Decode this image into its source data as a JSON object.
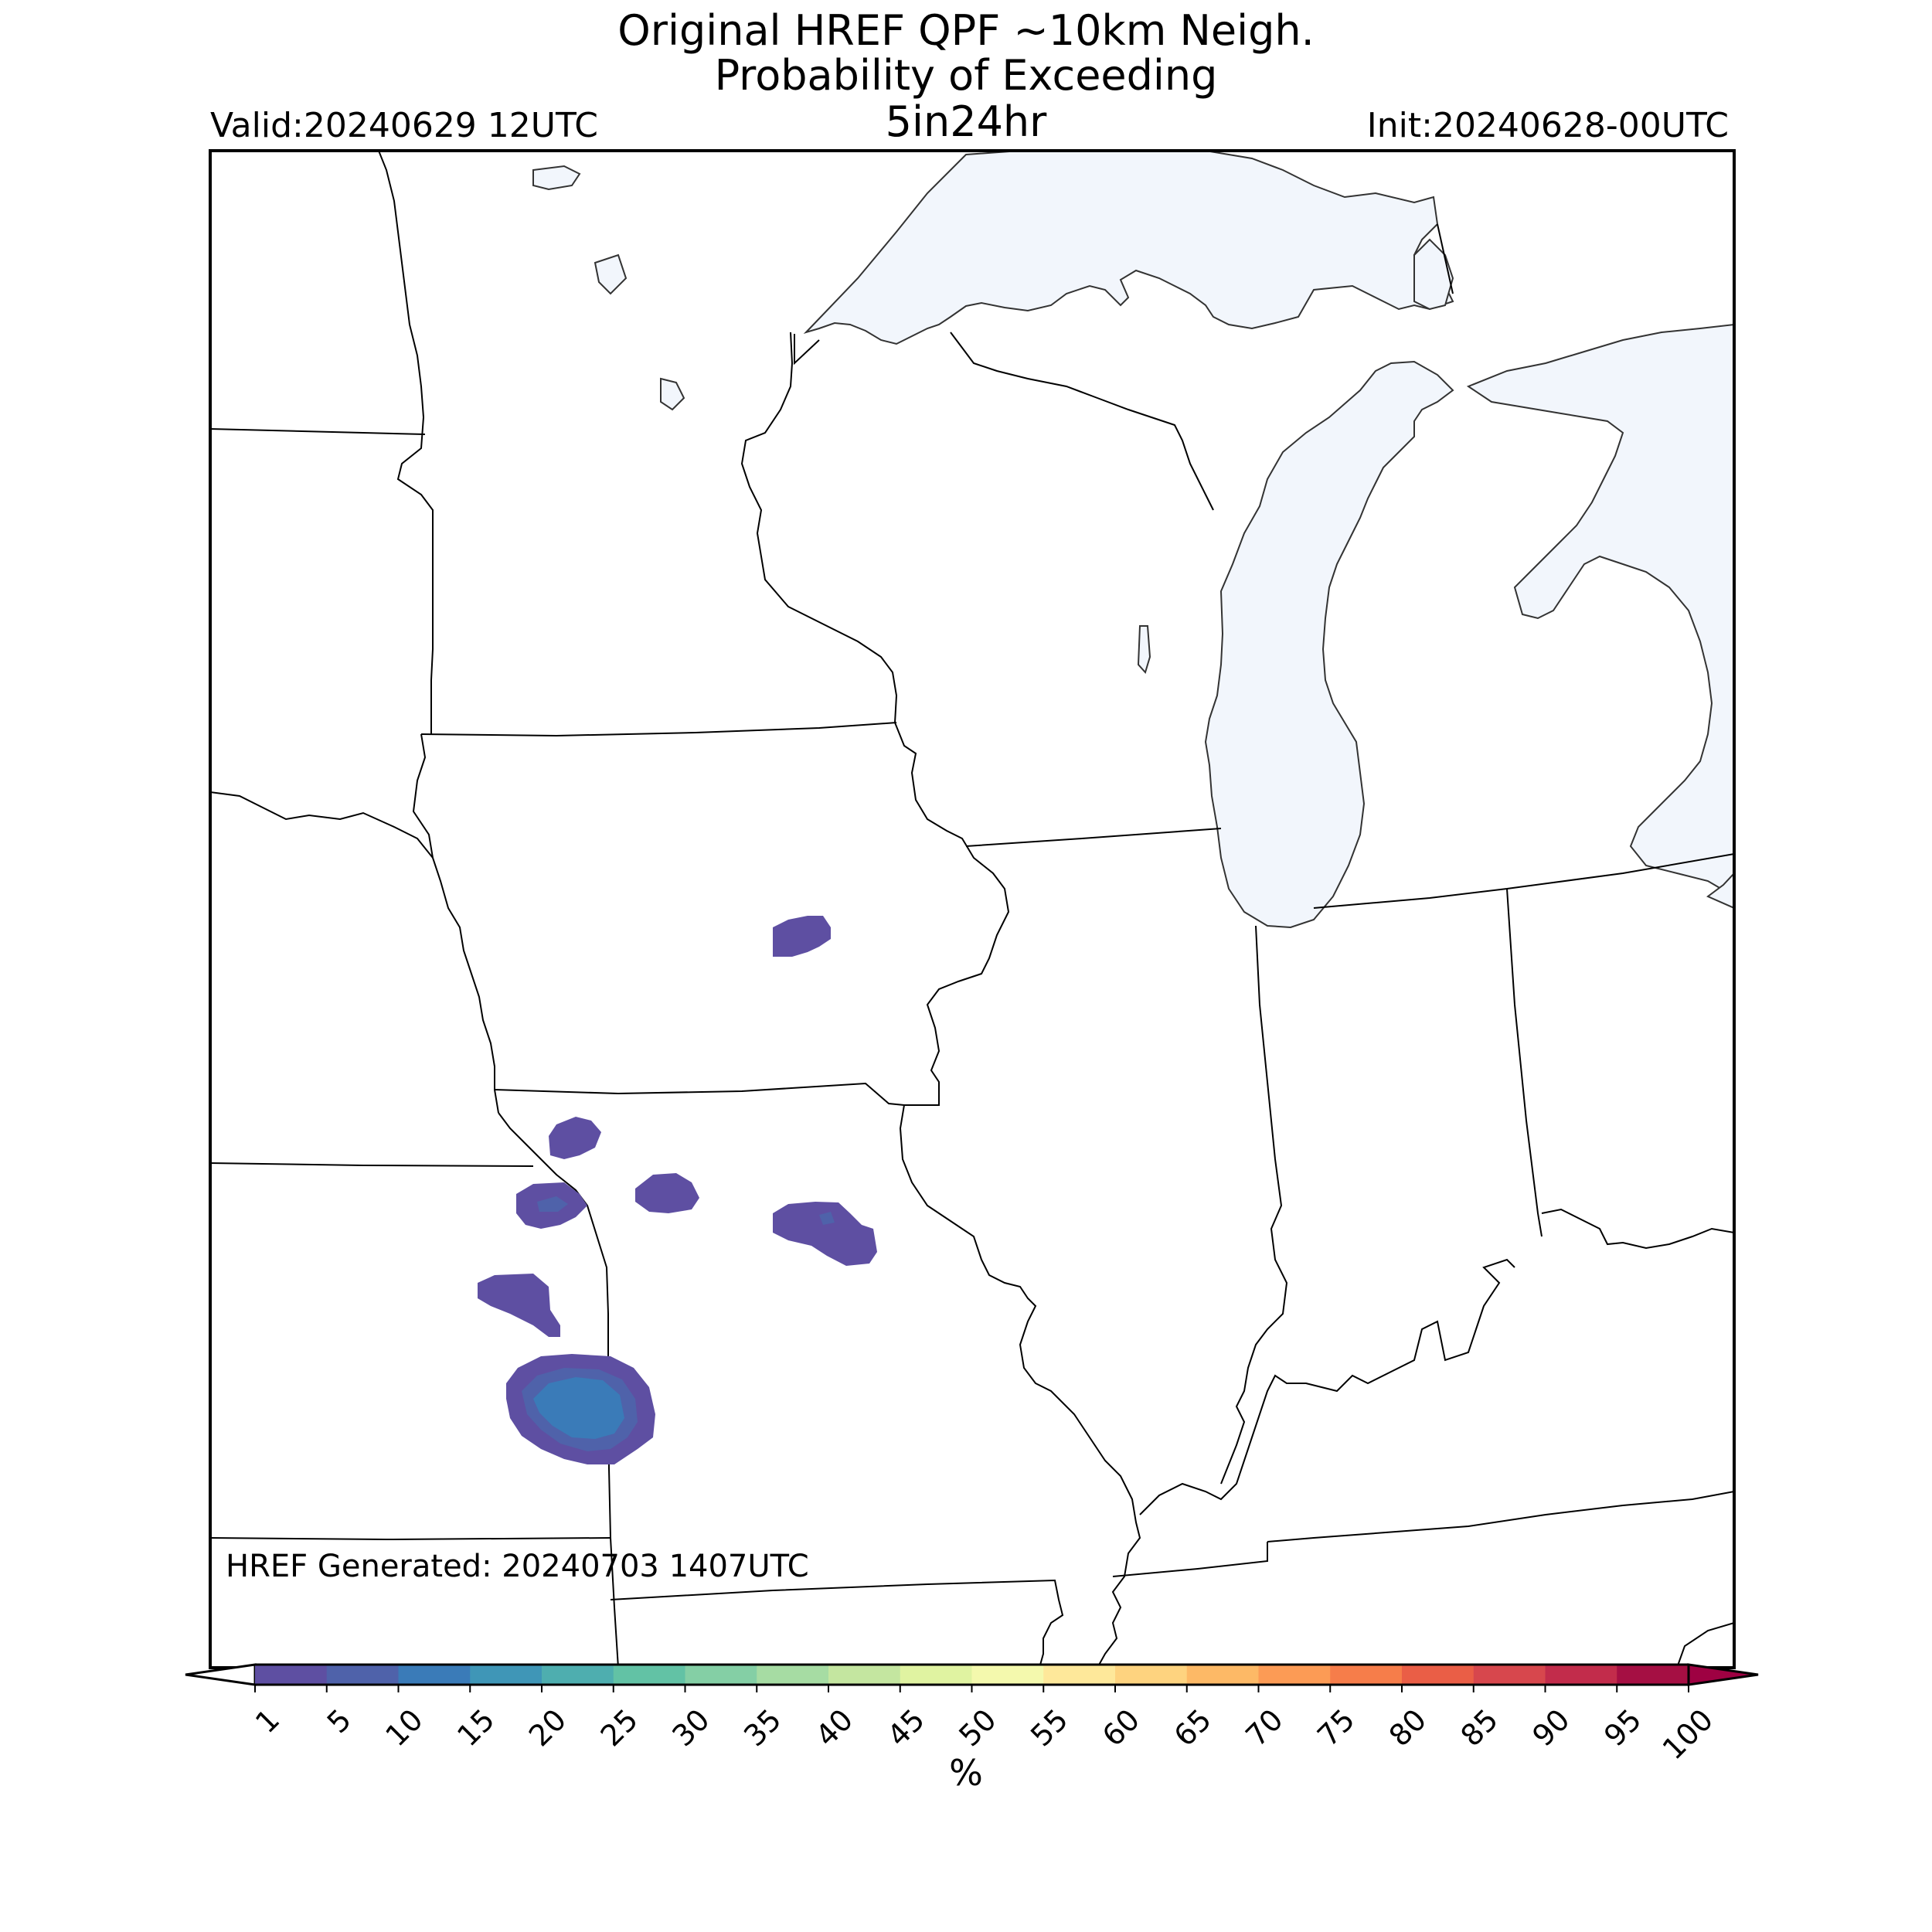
{
  "title": {
    "line1": "Original HREF QPF ~10km Neigh.",
    "line2": "Probability of Exceeding",
    "line3": "5in24hr"
  },
  "valid_label": "Valid:20240629 12UTC",
  "init_label": "Init:20240628-00UTC",
  "generated_label": "HREF Generated: 20240703 1407UTC",
  "colorbar": {
    "unit": "%",
    "ticks": [
      "1",
      "5",
      "10",
      "15",
      "20",
      "25",
      "30",
      "35",
      "40",
      "45",
      "50",
      "55",
      "60",
      "65",
      "70",
      "75",
      "80",
      "85",
      "90",
      "95",
      "100"
    ],
    "colors": [
      "#5e4fa2",
      "#4f62aa",
      "#3a7bb8",
      "#3f96b7",
      "#4eaeaf",
      "#62c2a5",
      "#84cfa5",
      "#a6dca3",
      "#c4e6a0",
      "#e0f3a1",
      "#f4f9ad",
      "#fee89a",
      "#fed37f",
      "#fdb966",
      "#fc9b55",
      "#f67d4a",
      "#ea5e46",
      "#d7474d",
      "#c22c4b",
      "#a50f43"
    ],
    "under_color": "#ffffff",
    "over_color": "#9e0142"
  },
  "map": {
    "lake_color": "#f2f6fc",
    "precip_colors": {
      "low": "#5e4fa2",
      "mid": "#4f62aa",
      "high": "#3a7bb8"
    }
  }
}
